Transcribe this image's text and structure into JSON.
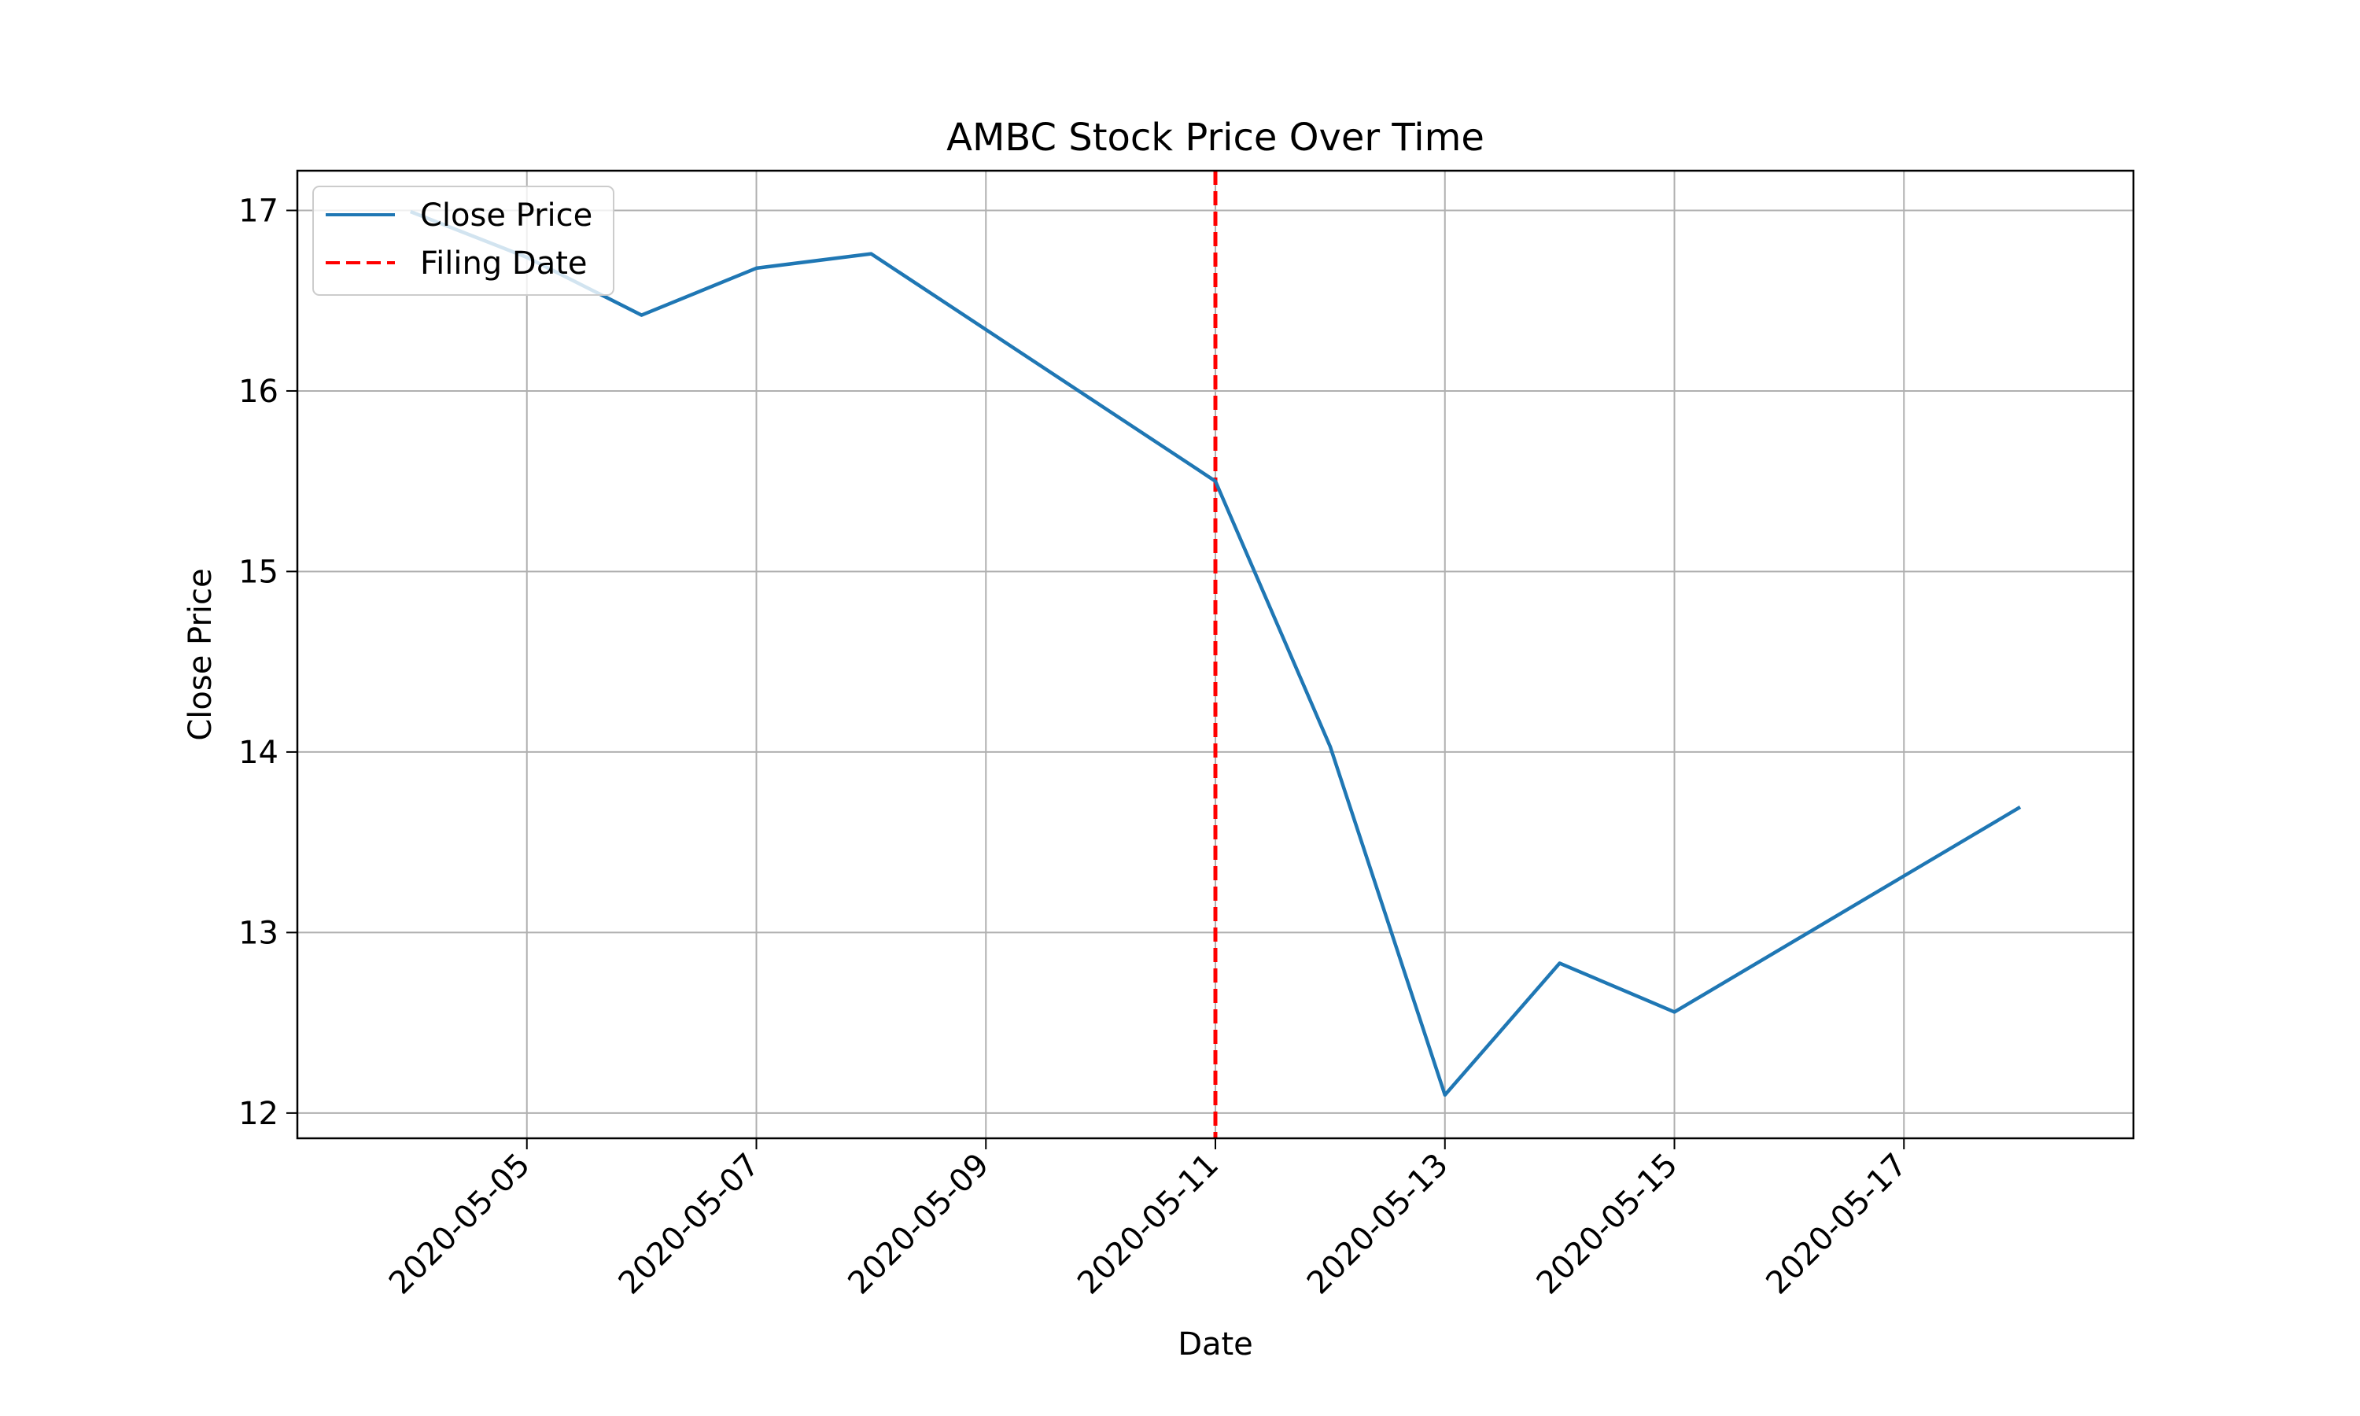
{
  "chart_data": {
    "type": "line",
    "title": "AMBC Stock Price Over Time",
    "xlabel": "Date",
    "ylabel": "Close Price",
    "x_type": "date",
    "xlim": [
      "2020-05-03",
      "2020-05-19"
    ],
    "ylim": [
      11.86,
      17.22
    ],
    "x_ticks": [
      "2020-05-05",
      "2020-05-07",
      "2020-05-09",
      "2020-05-11",
      "2020-05-13",
      "2020-05-15",
      "2020-05-17"
    ],
    "y_ticks": [
      12,
      13,
      14,
      15,
      16,
      17
    ],
    "grid": true,
    "legend_position": "upper left",
    "series": [
      {
        "name": "Close Price",
        "color": "#1f77b4",
        "line_style": "solid",
        "points": [
          {
            "x": "2020-05-04",
            "y": 16.99
          },
          {
            "x": "2020-05-05",
            "y": 16.74
          },
          {
            "x": "2020-05-06",
            "y": 16.42
          },
          {
            "x": "2020-05-07",
            "y": 16.68
          },
          {
            "x": "2020-05-08",
            "y": 16.76
          },
          {
            "x": "2020-05-11",
            "y": 15.5
          },
          {
            "x": "2020-05-12",
            "y": 14.03
          },
          {
            "x": "2020-05-13",
            "y": 12.1
          },
          {
            "x": "2020-05-14",
            "y": 12.83
          },
          {
            "x": "2020-05-15",
            "y": 12.56
          },
          {
            "x": "2020-05-18",
            "y": 13.69
          }
        ]
      }
    ],
    "reference_lines": [
      {
        "name": "Filing Date",
        "orientation": "vertical",
        "x": "2020-05-11",
        "color": "#ff0000",
        "line_style": "dashed"
      }
    ]
  }
}
